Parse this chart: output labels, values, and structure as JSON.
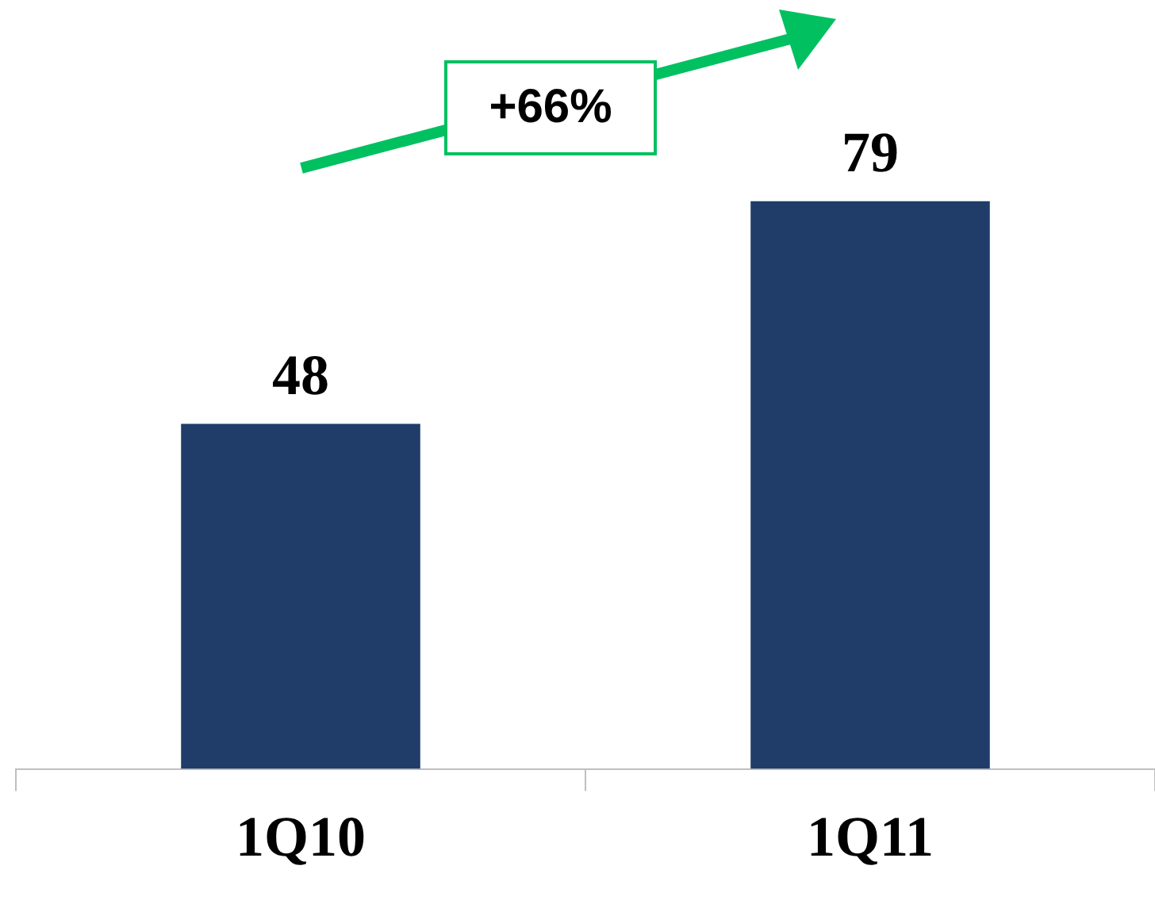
{
  "chart_data": {
    "type": "bar",
    "categories": [
      "1Q10",
      "1Q11"
    ],
    "values": [
      48,
      79
    ],
    "color": "#1f3d68",
    "data_labels": true,
    "grid": false,
    "legend": false,
    "annotations": [
      "+66%"
    ]
  }
}
